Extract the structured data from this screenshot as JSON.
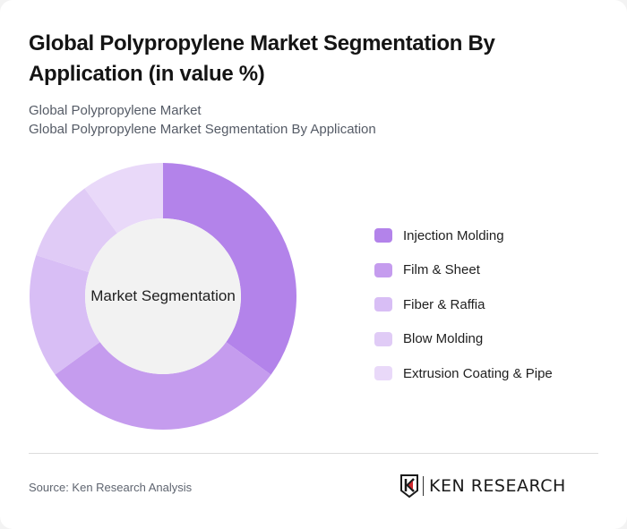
{
  "header": {
    "title": "Global Polypropylene Market Segmentation By Application (in value %)",
    "breadcrumb_line1": "Global Polypropylene Market",
    "breadcrumb_line2": "Global Polypropylene Market Segmentation By Application"
  },
  "chart": {
    "center_label": "Market Segmentation"
  },
  "chart_data": {
    "type": "pie",
    "variant": "donut",
    "title": "Global Polypropylene Market Segmentation By Application (in value %)",
    "center_label": "Market Segmentation",
    "categories": [
      "Injection Molding",
      "Film & Sheet",
      "Fiber & Raffia",
      "Blow Molding",
      "Extrusion Coating & Pipe"
    ],
    "values": [
      35,
      30,
      15,
      10,
      10
    ],
    "colors": [
      "#b383ea",
      "#c59cee",
      "#d8bef5",
      "#e0cbf6",
      "#e9d9f9"
    ],
    "unit": "%",
    "start_angle": "12 o'clock, clockwise",
    "legend_position": "right"
  },
  "legend": {
    "items": [
      {
        "label": "Injection Molding",
        "color": "#b383ea"
      },
      {
        "label": "Film & Sheet",
        "color": "#c59cee"
      },
      {
        "label": "Fiber & Raffia",
        "color": "#d8bef5"
      },
      {
        "label": "Blow Molding",
        "color": "#e0cbf6"
      },
      {
        "label": "Extrusion Coating & Pipe",
        "color": "#e9d9f9"
      }
    ]
  },
  "footer": {
    "source": "Source: Ken Research Analysis",
    "logo_text": "KEN RESEARCH"
  }
}
